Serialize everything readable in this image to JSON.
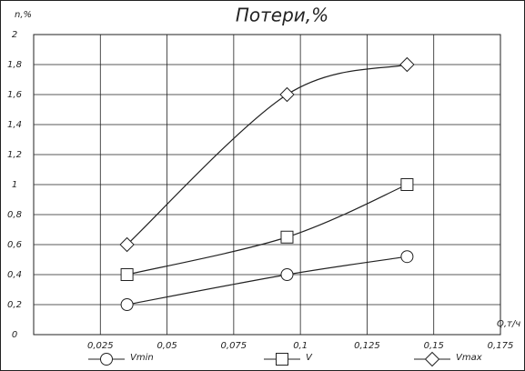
{
  "chart_data": {
    "type": "line",
    "title": "Потери,%",
    "y_label": "n,%",
    "x_label": "Q,т/ч",
    "xlim": [
      0,
      0.175
    ],
    "ylim": [
      0,
      2
    ],
    "xticks": [
      {
        "value": 0.025,
        "label": "0,025"
      },
      {
        "value": 0.05,
        "label": "0,05"
      },
      {
        "value": 0.075,
        "label": "0,075"
      },
      {
        "value": 0.1,
        "label": "0,1"
      },
      {
        "value": 0.125,
        "label": "0,125"
      },
      {
        "value": 0.15,
        "label": "0,15"
      },
      {
        "value": 0.175,
        "label": "0,175"
      }
    ],
    "yticks": [
      0,
      {
        "value": 0.2,
        "label": "0,2"
      },
      {
        "value": 0.4,
        "label": "0,4"
      },
      {
        "value": 0.6,
        "label": "0,6"
      },
      {
        "value": 0.8,
        "label": "0,8"
      },
      1,
      {
        "value": 1.2,
        "label": "1,2"
      },
      {
        "value": 1.4,
        "label": "1,4"
      },
      {
        "value": 1.6,
        "label": "1,6"
      },
      {
        "value": 1.8,
        "label": "1,8"
      },
      2
    ],
    "grid": true,
    "series": [
      {
        "name": "Vmin",
        "marker": "circle",
        "color": "#222222",
        "x": [
          0.035,
          0.095,
          0.14
        ],
        "values": [
          0.2,
          0.4,
          0.52
        ]
      },
      {
        "name": "V",
        "marker": "square",
        "color": "#222222",
        "x": [
          0.035,
          0.095,
          0.14
        ],
        "values": [
          0.4,
          0.65,
          1.0
        ]
      },
      {
        "name": "Vmax",
        "marker": "diamond",
        "color": "#222222",
        "x": [
          0.035,
          0.095,
          0.14
        ],
        "values": [
          0.6,
          1.6,
          1.8
        ]
      }
    ]
  }
}
